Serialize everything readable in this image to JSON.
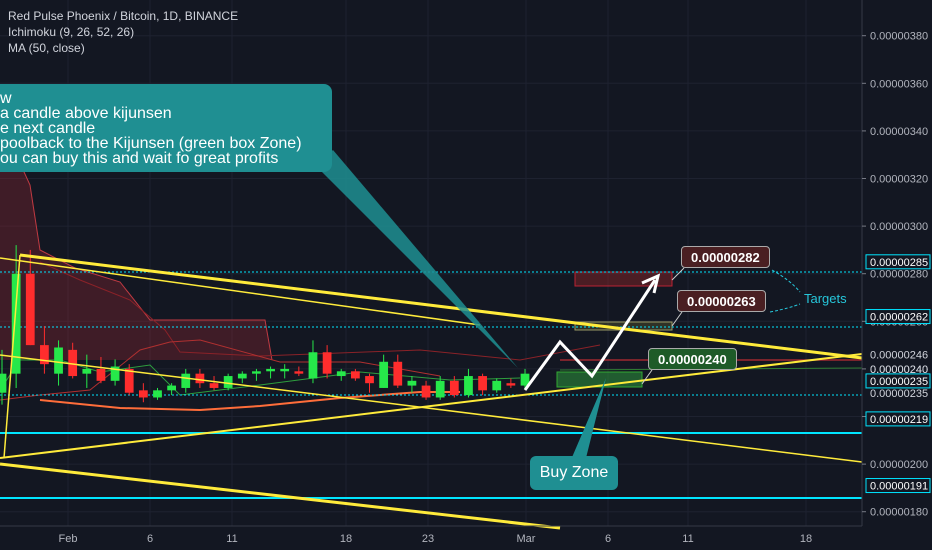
{
  "legend": {
    "symbol": "Red Pulse Phoenix / Bitcoin, 1D, BINANCE",
    "ichimoku": "Ichimoku (9, 26, 52, 26)",
    "ma": "MA (50, close)"
  },
  "note": {
    "lines": [
      "w",
      "a candle above kijunsen",
      "e next candle",
      "poolback to the Kijunsen (green box Zone)",
      "ou can buy this and wait fo great profits"
    ]
  },
  "buy_zone_label": "Buy Zone",
  "targets_label": "Targets",
  "price_boxes": {
    "target_high": "0.00000282",
    "target_low": "0.00000263",
    "entry": "0.00000240"
  },
  "colors": {
    "background": "#131722",
    "up": "#26e84a",
    "down": "#ff2d2d",
    "trendline": "#ffeb3b",
    "level": "#00e5ff",
    "callout": "#1f8f92"
  },
  "chart_data": {
    "type": "candlestick",
    "y_axis_ticks": [
      "0.00000380",
      "0.00000360",
      "0.00000340",
      "0.00000320",
      "0.00000300",
      "0.00000280",
      "0.00000260",
      "0.00000240",
      "0.00000220",
      "0.00000200",
      "0.00000180"
    ],
    "x_axis_ticks": [
      "Feb",
      "6",
      "11",
      "18",
      "23",
      "Mar",
      "6",
      "11",
      "18"
    ],
    "ylim": [
      1.74e-06,
      3.95e-06
    ],
    "price_labels": [
      {
        "value": "0.00000285",
        "style": "level"
      },
      {
        "value": "0.00000262",
        "style": "level"
      },
      {
        "value": "0.00000246",
        "style": "plain"
      },
      {
        "value": "0.00000240",
        "style": "plain"
      },
      {
        "value": "0.00000235",
        "style": "level"
      },
      {
        "value": "0.00000235",
        "style": "plain"
      },
      {
        "value": "0.00000219",
        "style": "level"
      },
      {
        "value": "0.00000191",
        "style": "level"
      }
    ],
    "candles": [
      {
        "o": 2.3e-06,
        "h": 2.48e-06,
        "l": 2.25e-06,
        "c": 2.38e-06
      },
      {
        "o": 2.38e-06,
        "h": 2.92e-06,
        "l": 2.32e-06,
        "c": 2.8e-06
      },
      {
        "o": 2.8e-06,
        "h": 2.9e-06,
        "l": 2.5e-06,
        "c": 2.5e-06
      },
      {
        "o": 2.5e-06,
        "h": 2.58e-06,
        "l": 2.38e-06,
        "c": 2.42e-06
      },
      {
        "o": 2.38e-06,
        "h": 2.52e-06,
        "l": 2.33e-06,
        "c": 2.49e-06
      },
      {
        "o": 2.48e-06,
        "h": 2.51e-06,
        "l": 2.36e-06,
        "c": 2.37e-06
      },
      {
        "o": 2.38e-06,
        "h": 2.46e-06,
        "l": 2.32e-06,
        "c": 2.4e-06
      },
      {
        "o": 2.4e-06,
        "h": 2.45e-06,
        "l": 2.34e-06,
        "c": 2.35e-06
      },
      {
        "o": 2.35e-06,
        "h": 2.44e-06,
        "l": 2.33e-06,
        "c": 2.41e-06
      },
      {
        "o": 2.4e-06,
        "h": 2.42e-06,
        "l": 2.29e-06,
        "c": 2.3e-06
      },
      {
        "o": 2.31e-06,
        "h": 2.34e-06,
        "l": 2.26e-06,
        "c": 2.28e-06
      },
      {
        "o": 2.28e-06,
        "h": 2.32e-06,
        "l": 2.27e-06,
        "c": 2.31e-06
      },
      {
        "o": 2.31e-06,
        "h": 2.34e-06,
        "l": 2.29e-06,
        "c": 2.33e-06
      },
      {
        "o": 2.32e-06,
        "h": 2.4e-06,
        "l": 2.3e-06,
        "c": 2.38e-06
      },
      {
        "o": 2.38e-06,
        "h": 2.4e-06,
        "l": 2.32e-06,
        "c": 2.34e-06
      },
      {
        "o": 2.34e-06,
        "h": 2.37e-06,
        "l": 2.31e-06,
        "c": 2.32e-06
      },
      {
        "o": 2.32e-06,
        "h": 2.38e-06,
        "l": 2.31e-06,
        "c": 2.37e-06
      },
      {
        "o": 2.36e-06,
        "h": 2.39e-06,
        "l": 2.34e-06,
        "c": 2.38e-06
      },
      {
        "o": 2.38e-06,
        "h": 2.4e-06,
        "l": 2.35e-06,
        "c": 2.39e-06
      },
      {
        "o": 2.39e-06,
        "h": 2.41e-06,
        "l": 2.36e-06,
        "c": 2.4e-06
      },
      {
        "o": 2.39e-06,
        "h": 2.42e-06,
        "l": 2.36e-06,
        "c": 2.4e-06
      },
      {
        "o": 2.39e-06,
        "h": 2.41e-06,
        "l": 2.37e-06,
        "c": 2.38e-06
      },
      {
        "o": 2.36e-06,
        "h": 2.52e-06,
        "l": 2.34e-06,
        "c": 2.47e-06
      },
      {
        "o": 2.47e-06,
        "h": 2.5e-06,
        "l": 2.36e-06,
        "c": 2.38e-06
      },
      {
        "o": 2.37e-06,
        "h": 2.4e-06,
        "l": 2.35e-06,
        "c": 2.39e-06
      },
      {
        "o": 2.39e-06,
        "h": 2.4e-06,
        "l": 2.35e-06,
        "c": 2.36e-06
      },
      {
        "o": 2.37e-06,
        "h": 2.38e-06,
        "l": 2.3e-06,
        "c": 2.34e-06
      },
      {
        "o": 2.32e-06,
        "h": 2.46e-06,
        "l": 2.32e-06,
        "c": 2.43e-06
      },
      {
        "o": 2.43e-06,
        "h": 2.46e-06,
        "l": 2.32e-06,
        "c": 2.33e-06
      },
      {
        "o": 2.33e-06,
        "h": 2.37e-06,
        "l": 2.3e-06,
        "c": 2.35e-06
      },
      {
        "o": 2.33e-06,
        "h": 2.35e-06,
        "l": 2.27e-06,
        "c": 2.28e-06
      },
      {
        "o": 2.28e-06,
        "h": 2.37e-06,
        "l": 2.27e-06,
        "c": 2.35e-06
      },
      {
        "o": 2.35e-06,
        "h": 2.37e-06,
        "l": 2.28e-06,
        "c": 2.29e-06
      },
      {
        "o": 2.29e-06,
        "h": 2.4e-06,
        "l": 2.28e-06,
        "c": 2.37e-06
      },
      {
        "o": 2.37e-06,
        "h": 2.38e-06,
        "l": 2.29e-06,
        "c": 2.31e-06
      },
      {
        "o": 2.31e-06,
        "h": 2.36e-06,
        "l": 2.3e-06,
        "c": 2.35e-06
      },
      {
        "o": 2.34e-06,
        "h": 2.36e-06,
        "l": 2.32e-06,
        "c": 2.33e-06
      },
      {
        "o": 2.33e-06,
        "h": 2.4e-06,
        "l": 2.32e-06,
        "c": 2.38e-06
      }
    ]
  }
}
